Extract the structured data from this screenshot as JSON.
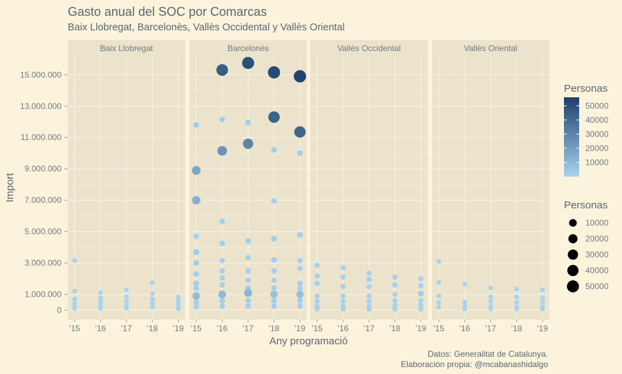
{
  "title": "Gasto anual del SOC por Comarcas",
  "subtitle": "Baix Llobregat, Barcelonès, Vallès Occidental y Vallès Oriental",
  "caption": [
    "Datos: Generalitat de Catalunya.",
    "Elaboración propia: @mcabanashidalgo"
  ],
  "colors": {
    "low": "#a8d4f0",
    "high": "#1d3f6a",
    "panel": "#ebe3cb",
    "grid": "#f7f1e3"
  },
  "chart_data": {
    "type": "scatter",
    "xlabel": "Any programació",
    "ylabel": "Import",
    "x_ticks": [
      "'15",
      "'16",
      "'17",
      "'18",
      "'19"
    ],
    "y_ticks": [
      {
        "value": 0,
        "label": "0"
      },
      {
        "value": 1000000,
        "label": "1.000.000"
      },
      {
        "value": 3000000,
        "label": "3.000.000"
      },
      {
        "value": 5000000,
        "label": "5.000.000"
      },
      {
        "value": 7000000,
        "label": "7.000.000"
      },
      {
        "value": 9000000,
        "label": "9.000.000"
      },
      {
        "value": 11000000,
        "label": "11.000.000"
      },
      {
        "value": 13000000,
        "label": "13.000.000"
      },
      {
        "value": 15000000,
        "label": "15.000.000"
      }
    ],
    "ylim": [
      -600000,
      16200000
    ],
    "legend_color": {
      "title": "Personas",
      "ticks": [
        10000,
        20000,
        30000,
        40000,
        50000
      ],
      "range": [
        0,
        56000
      ]
    },
    "legend_size": {
      "title": "Personas",
      "values": [
        10000,
        20000,
        30000,
        40000,
        50000
      ]
    },
    "panels": [
      {
        "name": "Baix Llobregat",
        "points": [
          [
            "'15",
            3150000,
            400
          ],
          [
            "'15",
            1200000,
            300
          ],
          [
            "'15",
            700000,
            300
          ],
          [
            "'15",
            450000,
            300
          ],
          [
            "'15",
            250000,
            300
          ],
          [
            "'15",
            100000,
            300
          ],
          [
            "'16",
            1100000,
            300
          ],
          [
            "'16",
            750000,
            300
          ],
          [
            "'16",
            500000,
            300
          ],
          [
            "'16",
            300000,
            300
          ],
          [
            "'16",
            120000,
            300
          ],
          [
            "'17",
            1300000,
            300
          ],
          [
            "'17",
            850000,
            300
          ],
          [
            "'17",
            550000,
            300
          ],
          [
            "'17",
            300000,
            300
          ],
          [
            "'17",
            120000,
            300
          ],
          [
            "'18",
            1750000,
            300
          ],
          [
            "'18",
            1050000,
            300
          ],
          [
            "'18",
            700000,
            300
          ],
          [
            "'18",
            450000,
            300
          ],
          [
            "'18",
            200000,
            300
          ],
          [
            "'19",
            850000,
            300
          ],
          [
            "'19",
            600000,
            300
          ],
          [
            "'19",
            400000,
            300
          ],
          [
            "'19",
            200000,
            300
          ],
          [
            "'19",
            80000,
            300
          ]
        ]
      },
      {
        "name": "Barcelonès",
        "points": [
          [
            "'15",
            11800000,
            2000
          ],
          [
            "'15",
            8900000,
            17000
          ],
          [
            "'15",
            7000000,
            14000
          ],
          [
            "'15",
            4700000,
            1500
          ],
          [
            "'15",
            3700000,
            3000
          ],
          [
            "'15",
            3000000,
            2000
          ],
          [
            "'15",
            2300000,
            1500
          ],
          [
            "'15",
            1700000,
            2000
          ],
          [
            "'15",
            1400000,
            1500
          ],
          [
            "'15",
            900000,
            9000
          ],
          [
            "'15",
            500000,
            2000
          ],
          [
            "'15",
            200000,
            1500
          ],
          [
            "'16",
            15300000,
            45000
          ],
          [
            "'16",
            12150000,
            2000
          ],
          [
            "'16",
            10150000,
            24000
          ],
          [
            "'16",
            5650000,
            1500
          ],
          [
            "'16",
            4250000,
            2000
          ],
          [
            "'16",
            3150000,
            1500
          ],
          [
            "'16",
            2500000,
            1500
          ],
          [
            "'16",
            2050000,
            1500
          ],
          [
            "'16",
            1600000,
            1500
          ],
          [
            "'16",
            1000000,
            10000
          ],
          [
            "'16",
            600000,
            2000
          ],
          [
            "'16",
            250000,
            1500
          ],
          [
            "'17",
            15750000,
            50000
          ],
          [
            "'17",
            11950000,
            2000
          ],
          [
            "'17",
            10600000,
            30000
          ],
          [
            "'17",
            4400000,
            2000
          ],
          [
            "'17",
            3350000,
            1500
          ],
          [
            "'17",
            2500000,
            1500
          ],
          [
            "'17",
            1900000,
            1500
          ],
          [
            "'17",
            1400000,
            1500
          ],
          [
            "'17",
            1100000,
            12000
          ],
          [
            "'17",
            600000,
            2000
          ],
          [
            "'17",
            250000,
            1500
          ],
          [
            "'18",
            15150000,
            52000
          ],
          [
            "'18",
            12300000,
            43000
          ],
          [
            "'18",
            10200000,
            2000
          ],
          [
            "'18",
            6950000,
            1500
          ],
          [
            "'18",
            4550000,
            2000
          ],
          [
            "'18",
            3200000,
            2000
          ],
          [
            "'18",
            2500000,
            1500
          ],
          [
            "'18",
            1900000,
            1500
          ],
          [
            "'18",
            1400000,
            1500
          ],
          [
            "'18",
            1000000,
            8000
          ],
          [
            "'18",
            600000,
            2000
          ],
          [
            "'18",
            250000,
            1500
          ],
          [
            "'19",
            14900000,
            54000
          ],
          [
            "'19",
            11350000,
            42000
          ],
          [
            "'19",
            10000000,
            2000
          ],
          [
            "'19",
            4800000,
            2000
          ],
          [
            "'19",
            3150000,
            1500
          ],
          [
            "'19",
            2650000,
            1500
          ],
          [
            "'19",
            1700000,
            1500
          ],
          [
            "'19",
            1400000,
            1500
          ],
          [
            "'19",
            1000000,
            8000
          ],
          [
            "'19",
            600000,
            2000
          ],
          [
            "'19",
            250000,
            1500
          ]
        ]
      },
      {
        "name": "Vallès Occidental",
        "points": [
          [
            "'15",
            2850000,
            1000
          ],
          [
            "'15",
            2150000,
            1000
          ],
          [
            "'15",
            1700000,
            1000
          ],
          [
            "'15",
            900000,
            800
          ],
          [
            "'15",
            550000,
            800
          ],
          [
            "'15",
            250000,
            800
          ],
          [
            "'15",
            80000,
            800
          ],
          [
            "'16",
            2700000,
            1000
          ],
          [
            "'16",
            2100000,
            1000
          ],
          [
            "'16",
            1500000,
            1000
          ],
          [
            "'16",
            900000,
            800
          ],
          [
            "'16",
            550000,
            800
          ],
          [
            "'16",
            250000,
            800
          ],
          [
            "'16",
            80000,
            800
          ],
          [
            "'17",
            2350000,
            1000
          ],
          [
            "'17",
            1950000,
            1000
          ],
          [
            "'17",
            1500000,
            1000
          ],
          [
            "'17",
            900000,
            800
          ],
          [
            "'17",
            550000,
            800
          ],
          [
            "'17",
            250000,
            800
          ],
          [
            "'17",
            80000,
            800
          ],
          [
            "'18",
            2100000,
            1000
          ],
          [
            "'18",
            1600000,
            1000
          ],
          [
            "'18",
            1000000,
            800
          ],
          [
            "'18",
            600000,
            800
          ],
          [
            "'18",
            300000,
            800
          ],
          [
            "'18",
            80000,
            800
          ],
          [
            "'19",
            2000000,
            1000
          ],
          [
            "'19",
            1550000,
            1000
          ],
          [
            "'19",
            1050000,
            2500
          ],
          [
            "'19",
            600000,
            800
          ],
          [
            "'19",
            300000,
            800
          ],
          [
            "'19",
            80000,
            800
          ]
        ]
      },
      {
        "name": "Vallès Oriental",
        "points": [
          [
            "'15",
            3100000,
            300
          ],
          [
            "'15",
            1750000,
            300
          ],
          [
            "'15",
            900000,
            300
          ],
          [
            "'15",
            500000,
            300
          ],
          [
            "'15",
            200000,
            300
          ],
          [
            "'16",
            1650000,
            300
          ],
          [
            "'16",
            500000,
            300
          ],
          [
            "'16",
            250000,
            300
          ],
          [
            "'16",
            80000,
            300
          ],
          [
            "'17",
            1400000,
            300
          ],
          [
            "'17",
            850000,
            300
          ],
          [
            "'17",
            550000,
            300
          ],
          [
            "'17",
            250000,
            300
          ],
          [
            "'17",
            80000,
            300
          ],
          [
            "'18",
            1350000,
            300
          ],
          [
            "'18",
            850000,
            300
          ],
          [
            "'18",
            500000,
            300
          ],
          [
            "'18",
            200000,
            300
          ],
          [
            "'18",
            80000,
            300
          ],
          [
            "'19",
            1300000,
            300
          ],
          [
            "'19",
            800000,
            300
          ],
          [
            "'19",
            500000,
            300
          ],
          [
            "'19",
            200000,
            300
          ],
          [
            "'19",
            80000,
            300
          ]
        ]
      }
    ]
  }
}
